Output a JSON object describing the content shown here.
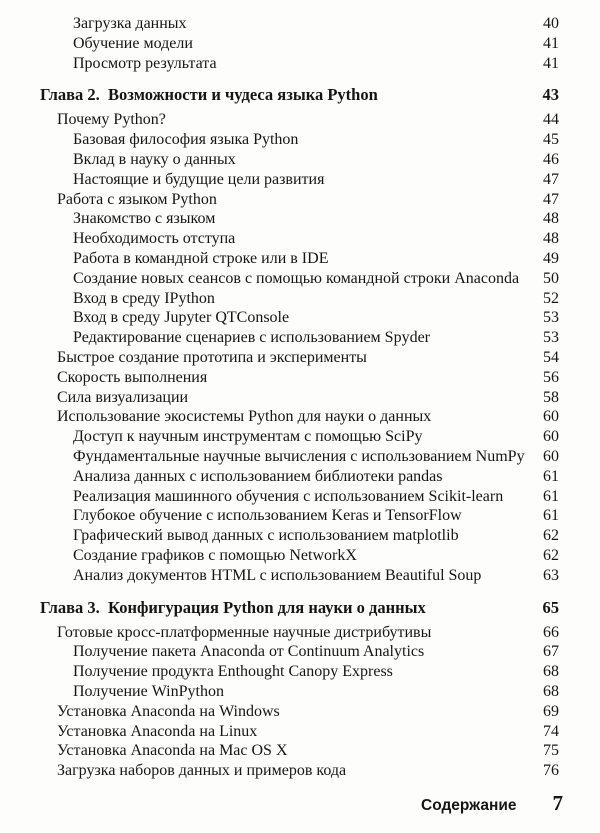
{
  "colors": {
    "page_background": "#fdfdfc",
    "text": "#161616"
  },
  "toc": {
    "entries": [
      {
        "level": 2,
        "title": "Загрузка данных",
        "page": "40"
      },
      {
        "level": 2,
        "title": "Обучение модели",
        "page": "41"
      },
      {
        "level": 2,
        "title": "Просмотр результата",
        "page": "41"
      },
      {
        "level": 0,
        "title": "Глава 2.  Возможности и чудеса языка Python",
        "page": "43"
      },
      {
        "level": 1,
        "title": "Почему Python?",
        "page": "44"
      },
      {
        "level": 2,
        "title": "Базовая философия языка Python",
        "page": "45"
      },
      {
        "level": 2,
        "title": "Вклад в науку о данных",
        "page": "46"
      },
      {
        "level": 2,
        "title": "Настоящие и будущие цели развития",
        "page": "47"
      },
      {
        "level": 1,
        "title": "Работа с языком Python",
        "page": "47"
      },
      {
        "level": 2,
        "title": "Знакомство с языком",
        "page": "48"
      },
      {
        "level": 2,
        "title": "Необходимость отступа",
        "page": "48"
      },
      {
        "level": 2,
        "title": "Работа в командной строке или в IDE",
        "page": "49"
      },
      {
        "level": 2,
        "title": "Создание новых сеансов с помощью командной строки Anaconda",
        "page": "50"
      },
      {
        "level": 2,
        "title": "Вход в среду IPython",
        "page": "52"
      },
      {
        "level": 2,
        "title": "Вход в среду Jupyter QTConsole",
        "page": "53"
      },
      {
        "level": 2,
        "title": "Редактирование сценариев с использованием Spyder",
        "page": "53"
      },
      {
        "level": 1,
        "title": "Быстрое создание прототипа и эксперименты",
        "page": "54"
      },
      {
        "level": 1,
        "title": "Скорость выполнения",
        "page": "56"
      },
      {
        "level": 1,
        "title": "Сила визуализации",
        "page": "58"
      },
      {
        "level": 1,
        "title": "Использование экосистемы Python для науки о данных",
        "page": "60"
      },
      {
        "level": 2,
        "title": "Доступ к научным инструментам с помощью SciPy",
        "page": "60"
      },
      {
        "level": 2,
        "title": "Фундаментальные научные вычисления с использованием NumPy",
        "page": "60"
      },
      {
        "level": 2,
        "title": "Анализа данных с использованием библиотеки pandas",
        "page": "61"
      },
      {
        "level": 2,
        "title": "Реализация машинного обучения с использованием Scikit-learn",
        "page": "61"
      },
      {
        "level": 2,
        "title": "Глубокое обучение с использованием Keras и TensorFlow",
        "page": "61"
      },
      {
        "level": 2,
        "title": "Графический вывод данных с использованием matplotlib",
        "page": "62"
      },
      {
        "level": 2,
        "title": "Создание графиков с помощью NetworkX",
        "page": "62"
      },
      {
        "level": 2,
        "title": "Анализ документов HTML с использованием Beautiful Soup",
        "page": "63"
      },
      {
        "level": 0,
        "title": "Глава 3.  Конфигурация Python для науки о данных",
        "page": "65"
      },
      {
        "level": 1,
        "title": "Готовые кросс-платформенные научные дистрибутивы",
        "page": "66"
      },
      {
        "level": 2,
        "title": "Получение пакета Anaconda от Continuum Analytics",
        "page": "67"
      },
      {
        "level": 2,
        "title": "Получение продукта Enthought Canopy Express",
        "page": "68"
      },
      {
        "level": 2,
        "title": "Получение WinPython",
        "page": "68"
      },
      {
        "level": 1,
        "title": "Установка Anaconda на Windows",
        "page": "69"
      },
      {
        "level": 1,
        "title": "Установка Anaconda на Linux",
        "page": "74"
      },
      {
        "level": 1,
        "title": "Установка Anaconda на Mac OS X",
        "page": "75"
      },
      {
        "level": 1,
        "title": "Загрузка наборов данных и примеров кода",
        "page": "76"
      }
    ]
  },
  "footer": {
    "section_label": "Содержание",
    "page_number": "7"
  }
}
